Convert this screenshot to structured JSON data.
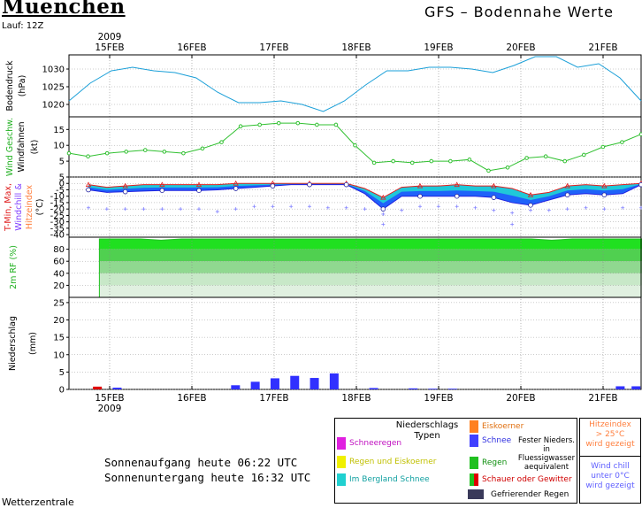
{
  "header": {
    "title": "Muenchen",
    "lauf": "Lauf: 12Z",
    "model": "GFS  –  Bodennahe Werte",
    "year_top": "2009",
    "year_bottom": "2009"
  },
  "chart_data": {
    "type": "line",
    "x_dates_top": [
      "15FEB",
      "16FEB",
      "17FEB",
      "18FEB",
      "19FEB",
      "20FEB",
      "21FEB"
    ],
    "x_dates_bottom": [
      "15FEB",
      "16FEB",
      "17FEB",
      "18FEB",
      "19FEB",
      "20FEB",
      "21FEB"
    ],
    "panels": {
      "pressure": {
        "ylabel": [
          "Bodendruck",
          "(hPa)"
        ],
        "ticks": [
          "1030",
          "1025",
          "1020"
        ],
        "ylim": [
          1016.5,
          1034
        ],
        "values": [
          1021,
          1026,
          1029.5,
          1030.5,
          1029.5,
          1029,
          1027.5,
          1023.5,
          1020.5,
          1020.5,
          1021,
          1020,
          1018,
          1021,
          1025.5,
          1029.5,
          1029.5,
          1030.5,
          1030.5,
          1030,
          1029,
          1031,
          1033.5,
          1033.5,
          1030.5,
          1031.5,
          1027.5,
          1021
        ]
      },
      "wind": {
        "ylabel": [
          "Wind Geschw.",
          "Windfahnen",
          "(kt)"
        ],
        "ticks": [
          "15",
          "10",
          "5"
        ],
        "ylim": [
          0,
          19
        ],
        "values": [
          7.5,
          6.5,
          7.5,
          8,
          8.5,
          8,
          7.5,
          9,
          11,
          16,
          16.5,
          17,
          17,
          16.5,
          16.5,
          10,
          4.5,
          5,
          4.5,
          5,
          5,
          5.5,
          2,
          3,
          6,
          6.5,
          5,
          7,
          9.5,
          11,
          13.5
        ]
      },
      "temperature": {
        "ylabel": [
          "T-Min, Max,",
          "Windchill &",
          "Hitzeindex",
          "(°C)"
        ],
        "ticks": [
          "5",
          "0",
          "-5",
          "-10",
          "-15",
          "-20",
          "-25",
          "-30",
          "-35",
          "-40"
        ],
        "ylim": [
          -42,
          5
        ],
        "tmin": [
          -5,
          -7,
          -6.5,
          -6,
          -5.5,
          -5.5,
          -5.5,
          -5,
          -4,
          -3,
          -2,
          -1,
          -1,
          -1,
          -1,
          -8,
          -20,
          -10,
          -10,
          -10,
          -10,
          -10,
          -11,
          -15,
          -17,
          -13,
          -9,
          -8,
          -9,
          -8,
          -1
        ],
        "tmax": [
          -1,
          -3,
          -2,
          -1,
          -1,
          -1,
          -1,
          -1,
          0,
          0,
          0,
          0,
          0,
          0,
          0,
          -4,
          -11,
          -3,
          -2,
          -2,
          -1,
          -2,
          -2,
          -4,
          -9,
          -7,
          -2,
          -1,
          -2,
          -1,
          0
        ],
        "windchill": [
          -19,
          -20,
          -20,
          -20,
          -20,
          -20,
          -20,
          -22,
          -20,
          -18,
          -18,
          -18,
          -18,
          -19,
          -19,
          -20,
          -24,
          -21,
          -18,
          -18,
          -18,
          -19,
          -21,
          -23,
          -21,
          -21,
          -20,
          -19,
          -20,
          -19,
          -19
        ],
        "windchill_extra": [
          -32,
          -32,
          -34
        ]
      },
      "humidity": {
        "ylabel": [
          "2m RF (%)"
        ],
        "ticks": [
          "80",
          "60",
          "40",
          "20"
        ],
        "ylim": [
          0,
          100
        ],
        "values": [
          97,
          97,
          97,
          95,
          97,
          97,
          97,
          97,
          97,
          97,
          97,
          97,
          97,
          97,
          97,
          97,
          97,
          97,
          97,
          97,
          97,
          97,
          95,
          97,
          97,
          97,
          97,
          97,
          97,
          97
        ]
      },
      "precip": {
        "ylabel": [
          "Niederschlag",
          "(mm)"
        ],
        "ticks": [
          "25",
          "20",
          "15",
          "10",
          "5",
          "0"
        ],
        "ylim": [
          0,
          26.5
        ],
        "bars": [
          {
            "t": 0.25,
            "value": 0.8,
            "type": "Schauer"
          },
          {
            "t": 0.75,
            "value": 0.5,
            "type": "Schnee"
          },
          {
            "t": 3.75,
            "value": 1.2,
            "type": "Schnee"
          },
          {
            "t": 4.25,
            "value": 2.2,
            "type": "Schnee"
          },
          {
            "t": 4.75,
            "value": 3.2,
            "type": "Schnee"
          },
          {
            "t": 5.25,
            "value": 3.9,
            "type": "Schnee"
          },
          {
            "t": 5.75,
            "value": 3.3,
            "type": "Schnee"
          },
          {
            "t": 6.25,
            "value": 4.6,
            "type": "Schnee"
          },
          {
            "t": 7.25,
            "value": 0.4,
            "type": "Schnee"
          },
          {
            "t": 8.25,
            "value": 0.3,
            "type": "Schnee"
          },
          {
            "t": 8.75,
            "value": 0.2,
            "type": "Schnee"
          },
          {
            "t": 9.25,
            "value": 0.2,
            "type": "Schnee"
          },
          {
            "t": 13.5,
            "value": 0.9,
            "type": "Schnee"
          },
          {
            "t": 13.9,
            "value": 0.9,
            "type": "Schnee"
          }
        ]
      }
    }
  },
  "sun": {
    "sunrise": "Sonnenaufgang heute 06:22 UTC",
    "sunset": "Sonnenuntergang heute 16:32 UTC"
  },
  "legend": {
    "title1": "Niederschlags",
    "title2": "Typen",
    "items_left": [
      {
        "label": "Schneeregen",
        "color": "#e020e0"
      },
      {
        "label": "Regen und Eiskoerner",
        "color": "#f0f000"
      },
      {
        "label": "Im Bergland Schnee",
        "color": "#20d0d0"
      }
    ],
    "items_right": [
      {
        "label": "Eiskoerner",
        "color": "#ff8020"
      },
      {
        "label": "Schnee",
        "color": "#4040ff"
      },
      {
        "label": "Regen",
        "color": "#20c020"
      },
      {
        "label": "Schauer oder Gewitter",
        "color": "#e00000"
      }
    ],
    "fester1": "Fester Nieders.",
    "fester2": "in Fluessigwasser",
    "fester3": "aequivalent",
    "freezing": "Gefrierender Regen",
    "freezing_color": "#3a3a5a",
    "hitze1": "Hitzeindex",
    "hitze2": "> 25°C",
    "hitze3": "wird gezeigt",
    "chill1": "Wind chill",
    "chill2": "unter 0°C",
    "chill3": "wird gezeigt"
  },
  "footer": {
    "brand": "Wetterzentrale"
  },
  "colors": {
    "pressure": "#1a9fd8",
    "wind": "#30c030",
    "tmax": "#e02020",
    "tmin": "#2020e0",
    "chill": "#8080ff",
    "fill_cyan": "#20c8d8",
    "fill_blue": "#2050ff"
  }
}
